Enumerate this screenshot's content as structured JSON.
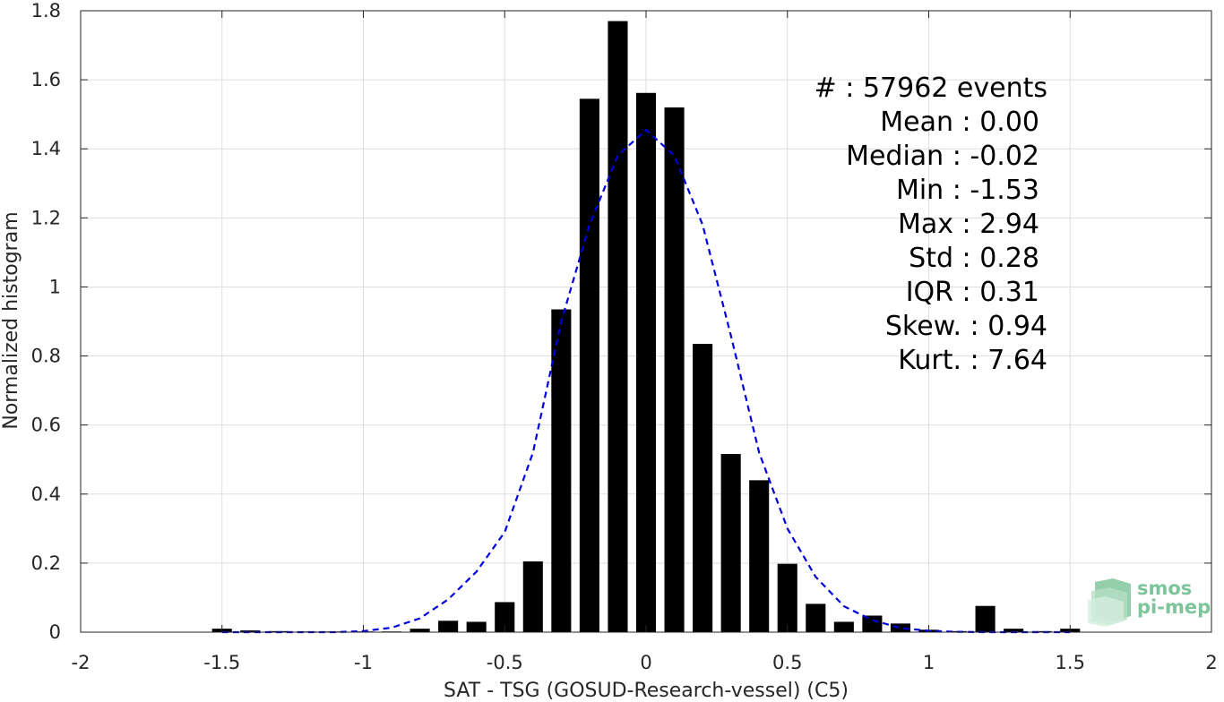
{
  "chart_data": {
    "type": "bar",
    "xlabel": "SAT - TSG (GOSUD-Research-vessel) (C5)",
    "ylabel": "Normalized histogram",
    "xlim": [
      -2,
      2
    ],
    "ylim": [
      0,
      1.8
    ],
    "xticks": [
      -2,
      -1.5,
      -1,
      -0.5,
      0,
      0.5,
      1,
      1.5,
      2
    ],
    "xtick_labels": [
      "-2",
      "-1.5",
      "-1",
      "-0.5",
      "0",
      "0.5",
      "1",
      "1.5",
      "2"
    ],
    "yticks": [
      0,
      0.2,
      0.4,
      0.6,
      0.8,
      1,
      1.2,
      1.4,
      1.6,
      1.8
    ],
    "ytick_labels": [
      "0",
      "0.2",
      "0.4",
      "0.6",
      "0.8",
      "1",
      "1.2",
      "1.4",
      "1.6",
      "1.8"
    ],
    "grid": true,
    "bar_width": 0.07,
    "bar_color": "#000000",
    "bars": {
      "x": [
        -1.5,
        -1.4,
        -1.3,
        -1.2,
        -1.1,
        -1.0,
        -0.9,
        -0.8,
        -0.7,
        -0.6,
        -0.5,
        -0.4,
        -0.3,
        -0.2,
        -0.1,
        0.0,
        0.1,
        0.2,
        0.3,
        0.4,
        0.5,
        0.6,
        0.7,
        0.8,
        0.9,
        1.0,
        1.1,
        1.2,
        1.3,
        1.4,
        1.5
      ],
      "y": [
        0.01,
        0.005,
        0.003,
        0.002,
        0.002,
        0.002,
        0.002,
        0.01,
        0.033,
        0.03,
        0.087,
        0.205,
        0.935,
        1.545,
        1.77,
        1.562,
        1.52,
        0.835,
        0.516,
        0.44,
        0.198,
        0.082,
        0.03,
        0.048,
        0.025,
        0.007,
        0.003,
        0.076,
        0.01,
        0.003,
        0.01
      ]
    },
    "fit": {
      "style": "dashed",
      "color": "#0000dd",
      "x": [
        -1.5,
        -1.4,
        -1.3,
        -1.2,
        -1.1,
        -1.0,
        -0.9,
        -0.8,
        -0.7,
        -0.6,
        -0.5,
        -0.4,
        -0.3,
        -0.2,
        -0.1,
        0.0,
        0.1,
        0.2,
        0.3,
        0.4,
        0.5,
        0.6,
        0.7,
        0.8,
        0.9,
        1.0,
        1.1,
        1.2,
        1.3,
        1.4,
        1.5
      ],
      "y": [
        0.0,
        0.0,
        0.0,
        0.0,
        0.0,
        0.003,
        0.013,
        0.04,
        0.095,
        0.175,
        0.29,
        0.52,
        0.9,
        1.18,
        1.38,
        1.455,
        1.38,
        1.18,
        0.86,
        0.52,
        0.3,
        0.16,
        0.075,
        0.035,
        0.012,
        0.004,
        0.001,
        0.0,
        0.0,
        0.0,
        0.0
      ]
    },
    "stats": [
      "#  : 57962 events",
      "Mean : 0.00",
      "Median : -0.02",
      "Min : -1.53",
      "Max : 2.94",
      "Std : 0.28",
      "IQR : 0.31",
      "Skew. : 0.94",
      "Kurt. : 7.64"
    ]
  },
  "logo": {
    "line1": "smos",
    "line2": "pi-mep",
    "color": "#7cc49a"
  }
}
